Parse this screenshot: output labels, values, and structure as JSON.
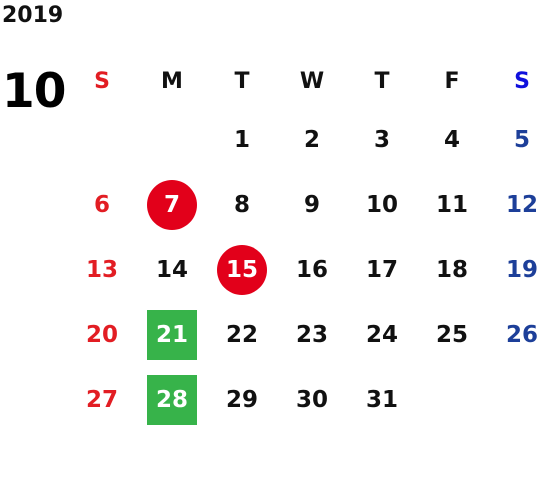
{
  "calendar": {
    "year": "2019",
    "month": "10",
    "weekdays": [
      "S",
      "M",
      "T",
      "W",
      "T",
      "F",
      "S"
    ],
    "weeks": [
      [
        "",
        "",
        "1",
        "2",
        "3",
        "4",
        "5"
      ],
      [
        "6",
        "7",
        "8",
        "9",
        "10",
        "11",
        "12"
      ],
      [
        "13",
        "14",
        "15",
        "16",
        "17",
        "18",
        "19"
      ],
      [
        "20",
        "21",
        "22",
        "23",
        "24",
        "25",
        "26"
      ],
      [
        "27",
        "28",
        "29",
        "30",
        "31",
        "",
        ""
      ]
    ],
    "highlights": {
      "circle": [
        "7",
        "15"
      ],
      "square": [
        "21",
        "28"
      ]
    }
  },
  "colors": {
    "sunday": "#e21d23",
    "saturday": "#1d3f99",
    "circle_mark": "#e2001a",
    "square_mark": "#37b34a"
  }
}
